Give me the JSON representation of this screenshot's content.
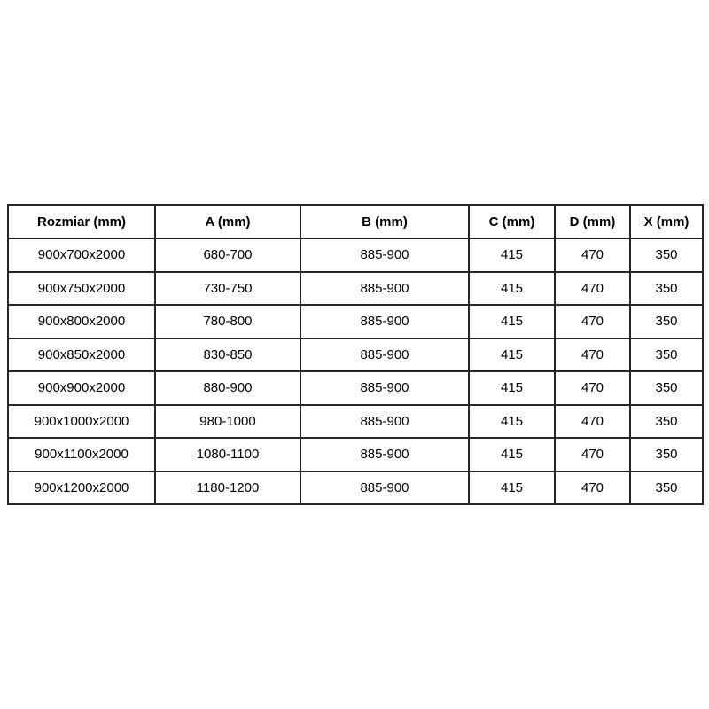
{
  "page": {
    "background_color": "#ffffff",
    "table_border_color": "#262626",
    "text_color": "#000000"
  },
  "table": {
    "columns": [
      "Rozmiar (mm)",
      "A (mm)",
      "B (mm)",
      "C (mm)",
      "D (mm)",
      "X (mm)"
    ],
    "rows": [
      [
        "900x700x2000",
        "680-700",
        "885-900",
        "415",
        "470",
        "350"
      ],
      [
        "900x750x2000",
        "730-750",
        "885-900",
        "415",
        "470",
        "350"
      ],
      [
        "900x800x2000",
        "780-800",
        "885-900",
        "415",
        "470",
        "350"
      ],
      [
        "900x850x2000",
        "830-850",
        "885-900",
        "415",
        "470",
        "350"
      ],
      [
        "900x900x2000",
        "880-900",
        "885-900",
        "415",
        "470",
        "350"
      ],
      [
        "900x1000x2000",
        "980-1000",
        "885-900",
        "415",
        "470",
        "350"
      ],
      [
        "900x1100x2000",
        "1080-1100",
        "885-900",
        "415",
        "470",
        "350"
      ],
      [
        "900x1200x2000",
        "1180-1200",
        "885-900",
        "415",
        "470",
        "350"
      ]
    ]
  }
}
